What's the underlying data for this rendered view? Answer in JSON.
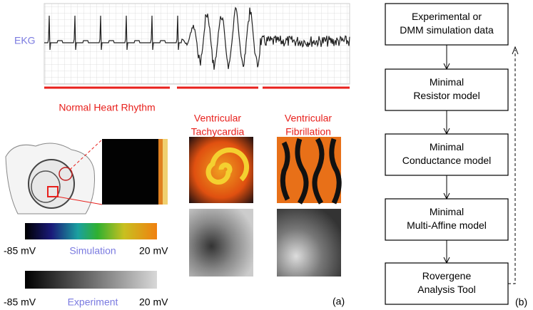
{
  "panel_a": {
    "ekg_label": "EKG",
    "rhythms": [
      {
        "lines": [
          "Normal Heart Rhythm"
        ]
      },
      {
        "lines": [
          "Ventricular",
          "Tachycardia"
        ]
      },
      {
        "lines": [
          "Ventricular",
          "Fibrillation"
        ]
      }
    ],
    "simulation_scale": {
      "min_label": "-85 mV",
      "name": "Simulation",
      "max_label": "20 mV"
    },
    "experiment_scale": {
      "min_label": "-85 mV",
      "name": "Experiment",
      "max_label": "20 mV"
    },
    "panel_label": "(a)"
  },
  "panel_b": {
    "boxes": [
      {
        "lines": [
          "Experimental or",
          "DMM simulation data"
        ]
      },
      {
        "lines": [
          "Minimal",
          "Resistor model"
        ]
      },
      {
        "lines": [
          "Minimal",
          "Conductance model"
        ]
      },
      {
        "lines": [
          "Minimal",
          "Multi-Affine model"
        ]
      },
      {
        "lines": [
          "Rovergene",
          "Analysis Tool"
        ]
      }
    ],
    "panel_label": "(b)"
  }
}
